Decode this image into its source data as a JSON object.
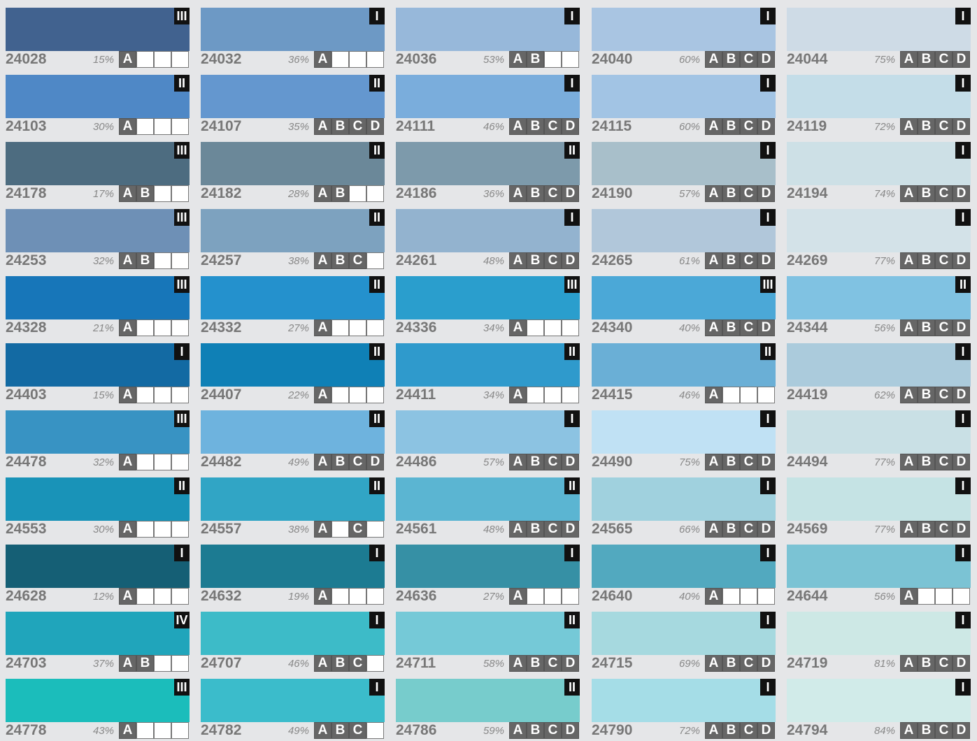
{
  "swatches": [
    {
      "code": "24028",
      "percent": "15%",
      "grade": "III",
      "ratings": [
        "A",
        null,
        null,
        null
      ],
      "color": "#41628f"
    },
    {
      "code": "24032",
      "percent": "36%",
      "grade": "I",
      "ratings": [
        "A",
        null,
        null,
        null
      ],
      "color": "#6d99c5"
    },
    {
      "code": "24036",
      "percent": "53%",
      "grade": "I",
      "ratings": [
        "A",
        "B",
        null,
        null
      ],
      "color": "#97b8da"
    },
    {
      "code": "24040",
      "percent": "60%",
      "grade": "I",
      "ratings": [
        "A",
        "B",
        "C",
        "D"
      ],
      "color": "#a9c5e2"
    },
    {
      "code": "24044",
      "percent": "75%",
      "grade": "I",
      "ratings": [
        "A",
        "B",
        "C",
        "D"
      ],
      "color": "#cedbe6"
    },
    {
      "code": "24103",
      "percent": "30%",
      "grade": "II",
      "ratings": [
        "A",
        null,
        null,
        null
      ],
      "color": "#4f88c6"
    },
    {
      "code": "24107",
      "percent": "35%",
      "grade": "II",
      "ratings": [
        "A",
        "B",
        "C",
        "D"
      ],
      "color": "#6497cf"
    },
    {
      "code": "24111",
      "percent": "46%",
      "grade": "I",
      "ratings": [
        "A",
        "B",
        "C",
        "D"
      ],
      "color": "#7aaddc"
    },
    {
      "code": "24115",
      "percent": "60%",
      "grade": "I",
      "ratings": [
        "A",
        "B",
        "C",
        "D"
      ],
      "color": "#a2c4e4"
    },
    {
      "code": "24119",
      "percent": "72%",
      "grade": "I",
      "ratings": [
        "A",
        "B",
        "C",
        "D"
      ],
      "color": "#c4dde8"
    },
    {
      "code": "24178",
      "percent": "17%",
      "grade": "III",
      "ratings": [
        "A",
        "B",
        null,
        null
      ],
      "color": "#4d6c80"
    },
    {
      "code": "24182",
      "percent": "28%",
      "grade": "II",
      "ratings": [
        "A",
        "B",
        null,
        null
      ],
      "color": "#6b8899"
    },
    {
      "code": "24186",
      "percent": "36%",
      "grade": "II",
      "ratings": [
        "A",
        "B",
        "C",
        "D"
      ],
      "color": "#7d9aab"
    },
    {
      "code": "24190",
      "percent": "57%",
      "grade": "I",
      "ratings": [
        "A",
        "B",
        "C",
        "D"
      ],
      "color": "#a8bfca"
    },
    {
      "code": "24194",
      "percent": "74%",
      "grade": "I",
      "ratings": [
        "A",
        "B",
        "C",
        "D"
      ],
      "color": "#cde0e6"
    },
    {
      "code": "24253",
      "percent": "32%",
      "grade": "III",
      "ratings": [
        "A",
        "B",
        null,
        null
      ],
      "color": "#6e90b6"
    },
    {
      "code": "24257",
      "percent": "38%",
      "grade": "II",
      "ratings": [
        "A",
        "B",
        "C",
        null
      ],
      "color": "#7da2bf"
    },
    {
      "code": "24261",
      "percent": "48%",
      "grade": "I",
      "ratings": [
        "A",
        "B",
        "C",
        "D"
      ],
      "color": "#93b3cf"
    },
    {
      "code": "24265",
      "percent": "61%",
      "grade": "I",
      "ratings": [
        "A",
        "B",
        "C",
        "D"
      ],
      "color": "#b1c7da"
    },
    {
      "code": "24269",
      "percent": "77%",
      "grade": "I",
      "ratings": [
        "A",
        "B",
        "C",
        "D"
      ],
      "color": "#d3e2e8"
    },
    {
      "code": "24328",
      "percent": "21%",
      "grade": "III",
      "ratings": [
        "A",
        null,
        null,
        null
      ],
      "color": "#1776b9"
    },
    {
      "code": "24332",
      "percent": "27%",
      "grade": "II",
      "ratings": [
        "A",
        null,
        null,
        null
      ],
      "color": "#2491cd"
    },
    {
      "code": "24336",
      "percent": "34%",
      "grade": "III",
      "ratings": [
        "A",
        null,
        null,
        null
      ],
      "color": "#2a9ecd"
    },
    {
      "code": "24340",
      "percent": "40%",
      "grade": "III",
      "ratings": [
        "A",
        "B",
        "C",
        "D"
      ],
      "color": "#4ba8d7"
    },
    {
      "code": "24344",
      "percent": "56%",
      "grade": "II",
      "ratings": [
        "A",
        "B",
        "C",
        "D"
      ],
      "color": "#80c2e2"
    },
    {
      "code": "24403",
      "percent": "15%",
      "grade": "I",
      "ratings": [
        "A",
        null,
        null,
        null
      ],
      "color": "#136aa3"
    },
    {
      "code": "24407",
      "percent": "22%",
      "grade": "II",
      "ratings": [
        "A",
        null,
        null,
        null
      ],
      "color": "#0f80b6"
    },
    {
      "code": "24411",
      "percent": "34%",
      "grade": "II",
      "ratings": [
        "A",
        null,
        null,
        null
      ],
      "color": "#2f9acc"
    },
    {
      "code": "24415",
      "percent": "46%",
      "grade": "II",
      "ratings": [
        "A",
        null,
        null,
        null
      ],
      "color": "#6aafd6"
    },
    {
      "code": "24419",
      "percent": "62%",
      "grade": "I",
      "ratings": [
        "A",
        "B",
        "C",
        "D"
      ],
      "color": "#abcbdc"
    },
    {
      "code": "24478",
      "percent": "32%",
      "grade": "III",
      "ratings": [
        "A",
        null,
        null,
        null
      ],
      "color": "#3893c3"
    },
    {
      "code": "24482",
      "percent": "49%",
      "grade": "II",
      "ratings": [
        "A",
        "B",
        "C",
        "D"
      ],
      "color": "#6eb3de"
    },
    {
      "code": "24486",
      "percent": "57%",
      "grade": "I",
      "ratings": [
        "A",
        "B",
        "C",
        "D"
      ],
      "color": "#8cc3e2"
    },
    {
      "code": "24490",
      "percent": "75%",
      "grade": "I",
      "ratings": [
        "A",
        "B",
        "C",
        "D"
      ],
      "color": "#c0e1f4"
    },
    {
      "code": "24494",
      "percent": "77%",
      "grade": "I",
      "ratings": [
        "A",
        "B",
        "C",
        "D"
      ],
      "color": "#c9e0e5"
    },
    {
      "code": "24553",
      "percent": "30%",
      "grade": "II",
      "ratings": [
        "A",
        null,
        null,
        null
      ],
      "color": "#1993b8"
    },
    {
      "code": "24557",
      "percent": "38%",
      "grade": "II",
      "ratings": [
        "A",
        null,
        "C",
        null
      ],
      "color": "#31a5c5"
    },
    {
      "code": "24561",
      "percent": "48%",
      "grade": "II",
      "ratings": [
        "A",
        "B",
        "C",
        "D"
      ],
      "color": "#5bb5d2"
    },
    {
      "code": "24565",
      "percent": "66%",
      "grade": "I",
      "ratings": [
        "A",
        "B",
        "C",
        "D"
      ],
      "color": "#a0d1de"
    },
    {
      "code": "24569",
      "percent": "77%",
      "grade": "I",
      "ratings": [
        "A",
        "B",
        "C",
        "D"
      ],
      "color": "#c5e3e4"
    },
    {
      "code": "24628",
      "percent": "12%",
      "grade": "I",
      "ratings": [
        "A",
        null,
        null,
        null
      ],
      "color": "#155f75"
    },
    {
      "code": "24632",
      "percent": "19%",
      "grade": "I",
      "ratings": [
        "A",
        null,
        null,
        null
      ],
      "color": "#1c7b92"
    },
    {
      "code": "24636",
      "percent": "27%",
      "grade": "I",
      "ratings": [
        "A",
        null,
        null,
        null
      ],
      "color": "#3690a5"
    },
    {
      "code": "24640",
      "percent": "40%",
      "grade": "I",
      "ratings": [
        "A",
        null,
        null,
        null
      ],
      "color": "#52a9bf"
    },
    {
      "code": "24644",
      "percent": "56%",
      "grade": "I",
      "ratings": [
        "A",
        null,
        null,
        null
      ],
      "color": "#7bc3d4"
    },
    {
      "code": "24703",
      "percent": "37%",
      "grade": "IV",
      "ratings": [
        "A",
        "B",
        null,
        null
      ],
      "color": "#20a5bb"
    },
    {
      "code": "24707",
      "percent": "46%",
      "grade": "I",
      "ratings": [
        "A",
        "B",
        "C",
        null
      ],
      "color": "#3dbbc8"
    },
    {
      "code": "24711",
      "percent": "58%",
      "grade": "II",
      "ratings": [
        "A",
        "B",
        "C",
        "D"
      ],
      "color": "#75c9d7"
    },
    {
      "code": "24715",
      "percent": "69%",
      "grade": "I",
      "ratings": [
        "A",
        "B",
        "C",
        "D"
      ],
      "color": "#a6d9df"
    },
    {
      "code": "24719",
      "percent": "81%",
      "grade": "I",
      "ratings": [
        "A",
        "B",
        "C",
        "D"
      ],
      "color": "#cde8e5"
    },
    {
      "code": "24778",
      "percent": "43%",
      "grade": "III",
      "ratings": [
        "A",
        null,
        null,
        null
      ],
      "color": "#1bbdbb"
    },
    {
      "code": "24782",
      "percent": "49%",
      "grade": "I",
      "ratings": [
        "A",
        "B",
        "C",
        null
      ],
      "color": "#3bbccb"
    },
    {
      "code": "24786",
      "percent": "59%",
      "grade": "II",
      "ratings": [
        "A",
        "B",
        "C",
        "D"
      ],
      "color": "#77cccc"
    },
    {
      "code": "24790",
      "percent": "72%",
      "grade": "I",
      "ratings": [
        "A",
        "B",
        "C",
        "D"
      ],
      "color": "#a5dde7"
    },
    {
      "code": "24794",
      "percent": "84%",
      "grade": "I",
      "ratings": [
        "A",
        "B",
        "C",
        "D"
      ],
      "color": "#d1ebe9"
    }
  ]
}
